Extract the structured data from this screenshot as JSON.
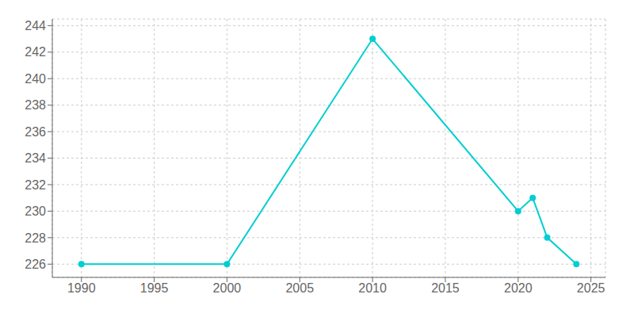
{
  "chart_data": {
    "type": "line",
    "x": [
      1990,
      2000,
      2010,
      2020,
      2021,
      2022,
      2024
    ],
    "values": [
      226,
      226,
      243,
      230,
      231,
      228,
      226
    ],
    "color": "#00CED1",
    "marker": "circle",
    "xlim": [
      1988,
      2026
    ],
    "ylim": [
      225.0,
      244.5
    ],
    "xticks": [
      1990,
      1995,
      2000,
      2005,
      2010,
      2015,
      2020,
      2025
    ],
    "yticks": [
      226,
      228,
      230,
      232,
      234,
      236,
      238,
      240,
      242,
      244
    ],
    "grid": true
  }
}
